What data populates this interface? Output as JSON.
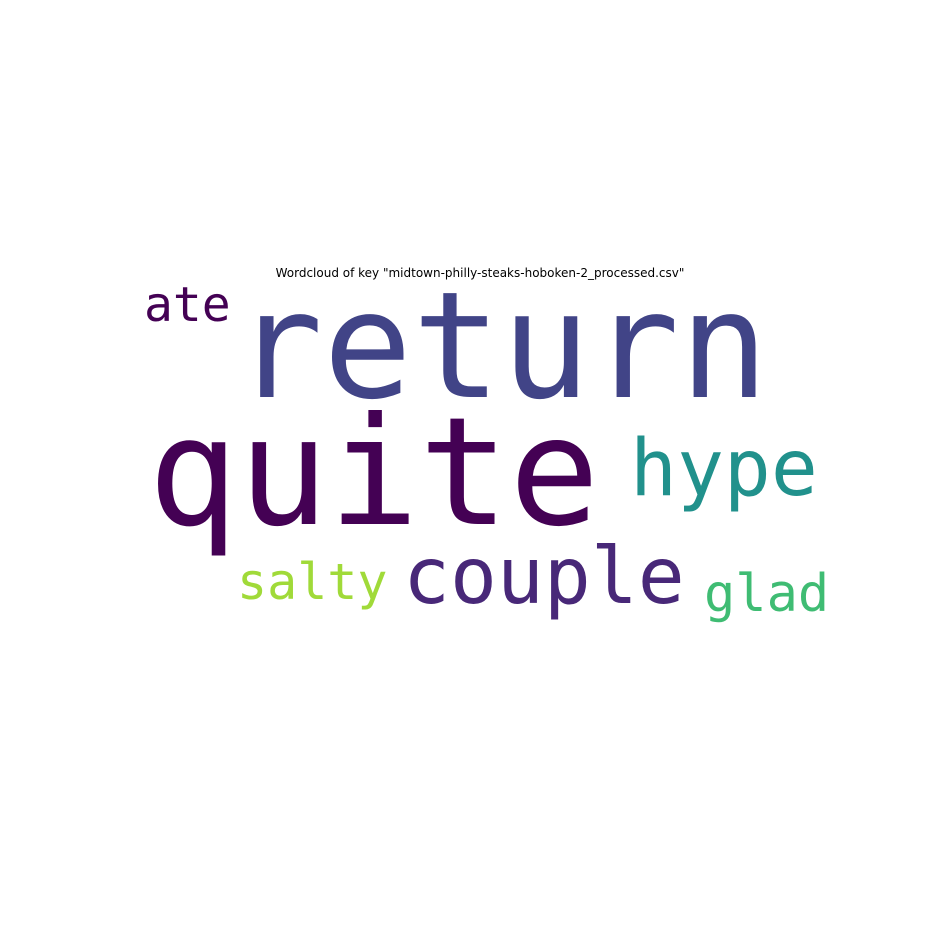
{
  "title": "Wordcloud of key \"midtown-philly-steaks-hoboken-2_processed.csv\"",
  "words": [
    {
      "text": "return",
      "color": "#414487"
    },
    {
      "text": "quite",
      "color": "#440154"
    },
    {
      "text": "hype",
      "color": "#21918c"
    },
    {
      "text": "couple",
      "color": "#482878"
    },
    {
      "text": "ate",
      "color": "#440154"
    },
    {
      "text": "salty",
      "color": "#a0da39"
    },
    {
      "text": "glad",
      "color": "#3fbc73"
    }
  ]
}
